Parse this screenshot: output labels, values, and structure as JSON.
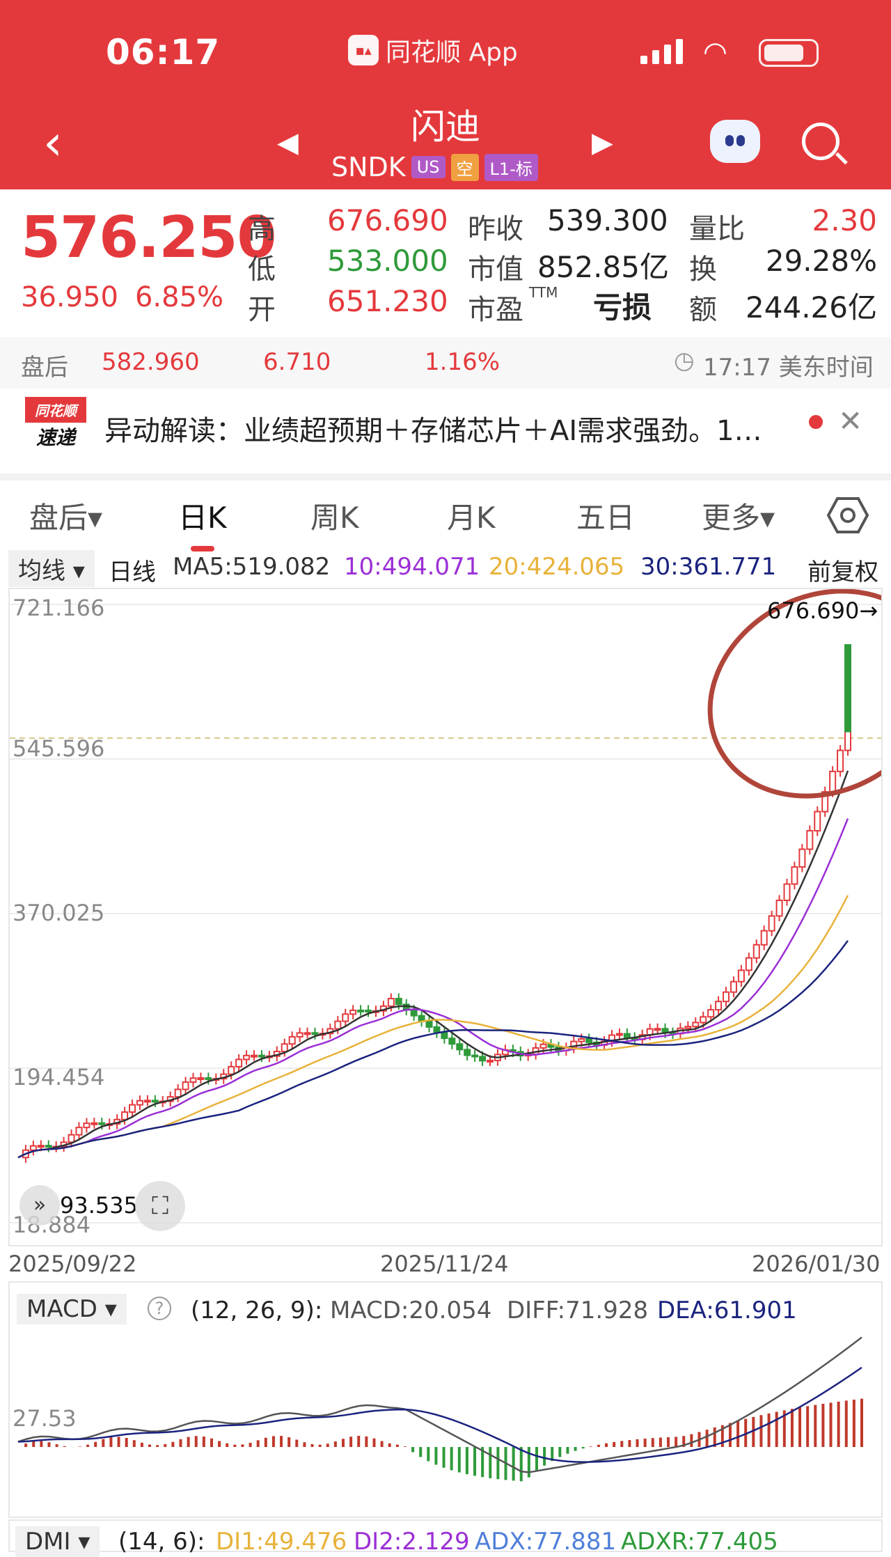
{
  "status_bar": {
    "time": "06:17",
    "app_label": "同花顺 App"
  },
  "nav": {
    "stock_name": "闪迪",
    "code": "SNDK",
    "tags": [
      {
        "text": "US",
        "color": "#b05ac8"
      },
      {
        "text": "空",
        "color": "#f0a040"
      },
      {
        "text": "L1-标",
        "color": "#b05ac8"
      }
    ]
  },
  "quote": {
    "price": "576.250",
    "change": "36.950",
    "change_pct": "6.85%",
    "labels": {
      "high": "高",
      "low": "低",
      "open": "开",
      "prev_close": "昨收",
      "mkt_cap": "市值",
      "pe": "市盈",
      "pe_sup": "TTM",
      "vol_ratio": "量比",
      "turnover": "换",
      "amount": "额"
    },
    "high": "676.690",
    "low": "533.000",
    "open": "651.230",
    "prev_close": "539.300",
    "mkt_cap": "852.85亿",
    "pe": "亏损",
    "vol_ratio": "2.30",
    "turnover": "29.28%",
    "amount": "244.26亿"
  },
  "after_hours": {
    "label": "盘后",
    "price": "582.960",
    "change": "6.710",
    "change_pct": "1.16%",
    "time": "17:17 美东时间"
  },
  "news": {
    "logo_top": "同花顺",
    "logo_bottom": "速递",
    "text": "异动解读：业绩超预期＋存储芯片＋AI需求强劲。1…"
  },
  "tabs": [
    {
      "label": "盘后▾",
      "active": false
    },
    {
      "label": "日K",
      "active": true
    },
    {
      "label": "周K",
      "active": false
    },
    {
      "label": "月K",
      "active": false
    },
    {
      "label": "五日",
      "active": false
    },
    {
      "label": "更多▾",
      "active": false
    }
  ],
  "ma": {
    "selector": "均线",
    "period": "日线",
    "ma5": "MA5:519.082",
    "ma10": "10:494.071",
    "ma20": "20:424.065",
    "ma30": "30:361.771",
    "adjust": "前复权",
    "colors": {
      "ma5": "#333333",
      "ma10": "#9b2fd6",
      "ma20": "#e8b23a",
      "ma30": "#1a237e"
    }
  },
  "kchart": {
    "y_labels": [
      "721.166",
      "545.596",
      "370.025",
      "194.454",
      "18.884"
    ],
    "y_values": [
      721.166,
      545.596,
      370.025,
      194.454,
      18.884
    ],
    "high_marker": "676.690→",
    "low_marker": "93.535",
    "x_labels": [
      "2025/09/22",
      "2025/11/24",
      "2026/01/30"
    ]
  },
  "macd": {
    "selector": "MACD",
    "params": "(12, 26, 9):",
    "macd": "MACD:20.054",
    "diff": "DIFF:71.928",
    "dea": "DEA:61.901",
    "y_label": "27.53"
  },
  "dmi": {
    "selector": "DMI",
    "params": "(14, 6):",
    "di1": "DI1:49.476",
    "di2": "DI2:2.129",
    "adx": "ADX:77.881",
    "adxr": "ADXR:77.405"
  }
}
